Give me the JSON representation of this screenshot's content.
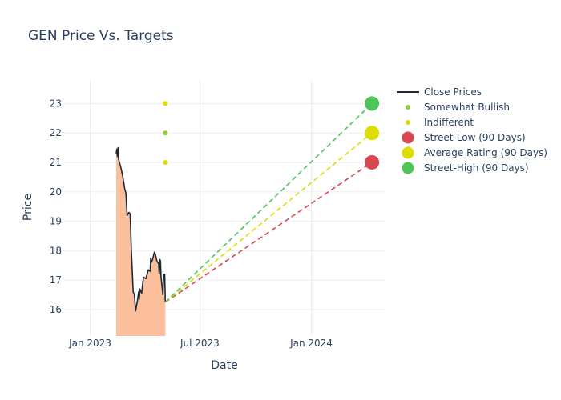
{
  "chart_data": {
    "type": "line",
    "title": "GEN Price Vs. Targets",
    "xlabel": "Date",
    "ylabel": "Price",
    "x_range": [
      "2022-11-19",
      "2024-05-01"
    ],
    "y_range": [
      15.1,
      23.8
    ],
    "x_ticks": [
      {
        "date": "2023-01-01",
        "label": "Jan 2023"
      },
      {
        "date": "2023-07-01",
        "label": "Jul 2023"
      },
      {
        "date": "2024-01-01",
        "label": "Jan 2024"
      }
    ],
    "y_ticks": [
      16,
      17,
      18,
      19,
      20,
      21,
      22,
      23
    ],
    "close_prices": {
      "name": "Close Prices",
      "color": "#1f2a36",
      "fill_color": "#fbbf9b",
      "points": [
        [
          "2023-02-13",
          21.3
        ],
        [
          "2023-02-14",
          21.45
        ],
        [
          "2023-02-15",
          21.2
        ],
        [
          "2023-02-16",
          21.5
        ],
        [
          "2023-02-17",
          21.1
        ],
        [
          "2023-02-21",
          20.8
        ],
        [
          "2023-02-23",
          20.6
        ],
        [
          "2023-02-24",
          20.5
        ],
        [
          "2023-02-27",
          20.1
        ],
        [
          "2023-03-01",
          19.95
        ],
        [
          "2023-03-03",
          19.2
        ],
        [
          "2023-03-06",
          19.3
        ],
        [
          "2023-03-08",
          19.25
        ],
        [
          "2023-03-10",
          18.0
        ],
        [
          "2023-03-13",
          16.6
        ],
        [
          "2023-03-15",
          16.5
        ],
        [
          "2023-03-17",
          15.95
        ],
        [
          "2023-03-20",
          16.3
        ],
        [
          "2023-03-22",
          16.6
        ],
        [
          "2023-03-23",
          16.35
        ],
        [
          "2023-03-24",
          16.7
        ],
        [
          "2023-03-27",
          16.55
        ],
        [
          "2023-03-28",
          16.75
        ],
        [
          "2023-03-30",
          17.1
        ],
        [
          "2023-04-03",
          17.05
        ],
        [
          "2023-04-05",
          17.2
        ],
        [
          "2023-04-07",
          17.35
        ],
        [
          "2023-04-10",
          17.3
        ],
        [
          "2023-04-11",
          17.75
        ],
        [
          "2023-04-12",
          17.6
        ],
        [
          "2023-04-14",
          17.7
        ],
        [
          "2023-04-17",
          17.95
        ],
        [
          "2023-04-19",
          17.85
        ],
        [
          "2023-04-21",
          17.65
        ],
        [
          "2023-04-24",
          17.55
        ],
        [
          "2023-04-25",
          17.2
        ],
        [
          "2023-04-26",
          17.7
        ],
        [
          "2023-04-27",
          17.65
        ],
        [
          "2023-04-28",
          17.1
        ],
        [
          "2023-05-01",
          16.5
        ],
        [
          "2023-05-02",
          17.2
        ],
        [
          "2023-05-03",
          17.0
        ],
        [
          "2023-05-04",
          17.2
        ],
        [
          "2023-05-05",
          16.25
        ]
      ]
    },
    "rating_dots": [
      {
        "name": "Somewhat Bullish",
        "color": "#8fcf2c",
        "date": "2023-05-05",
        "values": [
          22.0
        ]
      },
      {
        "name": "Indifferent",
        "color": "#dddd00",
        "date": "2023-05-05",
        "values": [
          23.0,
          21.0
        ]
      }
    ],
    "targets": {
      "start": [
        "2023-05-05",
        16.25
      ],
      "date": "2024-04-10",
      "items": [
        {
          "name": "Street-Low (90 Days)",
          "color": "#d9464f",
          "value": 21.0
        },
        {
          "name": "Average Rating (90 Days)",
          "color": "#dddd00",
          "value": 22.0
        },
        {
          "name": "Street-High (90 Days)",
          "color": "#4dc659",
          "value": 23.0
        }
      ]
    },
    "legend": {
      "position": "top-right",
      "entries": [
        "Close Prices",
        "Somewhat Bullish",
        "Indifferent",
        "Street-Low (90 Days)",
        "Average Rating (90 Days)",
        "Street-High (90 Days)"
      ]
    },
    "grid": true
  }
}
